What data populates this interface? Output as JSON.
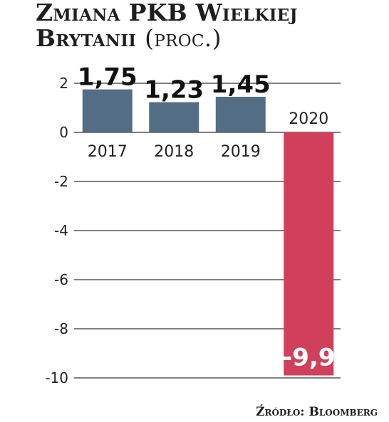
{
  "title": {
    "main_line1": "Zmiana PKB Wielkiej",
    "main_line2": "Brytanii",
    "unit": "(proc.)"
  },
  "source": "Źródło: Bloomberg",
  "colors": {
    "bar": "#536d84",
    "bar_negative": "#d0405a",
    "grid": "#000000"
  },
  "chart_data": {
    "type": "bar",
    "title": "Zmiana PKB Wielkiej Brytanii (proc.)",
    "categories": [
      "2017",
      "2018",
      "2019",
      "2020"
    ],
    "values": [
      1.75,
      1.23,
      1.45,
      -9.9
    ],
    "value_labels": [
      "1,75",
      "1,23",
      "1,45",
      "-9,9"
    ],
    "yticks": [
      2,
      0,
      -2,
      -4,
      -6,
      -8,
      -10
    ],
    "ytick_labels": [
      "2",
      "0",
      "-2",
      "-4",
      "-6",
      "-8",
      "-10"
    ],
    "ylim": [
      -10,
      2
    ],
    "grid": true,
    "xlabel": "",
    "ylabel": ""
  }
}
